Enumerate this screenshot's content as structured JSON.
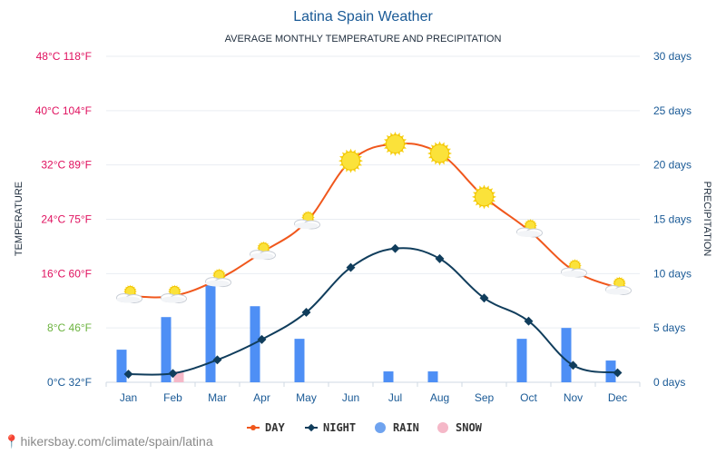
{
  "chart_data": {
    "type": "line",
    "title": "Latina Spain Weather",
    "subtitle": "AVERAGE MONTHLY TEMPERATURE AND PRECIPITATION",
    "categories": [
      "Jan",
      "Feb",
      "Mar",
      "Apr",
      "May",
      "Jun",
      "Jul",
      "Aug",
      "Sep",
      "Oct",
      "Nov",
      "Dec"
    ],
    "left_axis": {
      "label": "TEMPERATURE",
      "range": [
        0,
        48
      ],
      "ticks": [
        "0°C 32°F",
        "8°C 46°F",
        "16°C 60°F",
        "24°C 75°F",
        "32°C 89°F",
        "40°C 104°F",
        "48°C 118°F"
      ],
      "tick_colors": [
        "#1a5a96",
        "#6cb33f",
        "#e0115f",
        "#e0115f",
        "#e0115f",
        "#e0115f",
        "#e0115f"
      ]
    },
    "right_axis": {
      "label": "PRECIPITATION",
      "range": [
        0,
        30
      ],
      "ticks": [
        "0 days",
        "5 days",
        "10 days",
        "15 days",
        "20 days",
        "25 days",
        "30 days"
      ]
    },
    "series": [
      {
        "name": "DAY",
        "type": "line",
        "unit": "°C",
        "color": "#f0571c",
        "values": [
          12.7,
          12.7,
          15.1,
          19.1,
          23.6,
          32.6,
          35.1,
          33.7,
          27.3,
          22.4,
          16.5,
          13.9
        ]
      },
      {
        "name": "NIGHT",
        "type": "line",
        "unit": "°C",
        "color": "#103d5c",
        "values": [
          1.2,
          1.3,
          3.3,
          6.3,
          10.3,
          16.9,
          19.7,
          18.2,
          12.4,
          9.0,
          2.5,
          1.4
        ]
      },
      {
        "name": "RAIN",
        "type": "bar",
        "unit": "days",
        "color": "#4e8ff5",
        "values": [
          3,
          6,
          9,
          7,
          4,
          0,
          1,
          1,
          0,
          4,
          5,
          2
        ]
      },
      {
        "name": "SNOW",
        "type": "bar",
        "unit": "days",
        "color": "#f5b8c8",
        "values": [
          0,
          1,
          0,
          0,
          0,
          0,
          0,
          0,
          0,
          0,
          0,
          0
        ]
      }
    ],
    "weather_icons": [
      "partly-cloudy",
      "partly-cloudy",
      "partly-cloudy",
      "partly-cloudy",
      "partly-cloudy",
      "sun",
      "sun",
      "sun",
      "sun",
      "partly-cloudy",
      "partly-cloudy",
      "partly-cloudy"
    ],
    "legend": [
      "DAY",
      "NIGHT",
      "RAIN",
      "SNOW"
    ],
    "legend_position": "bottom-center",
    "grid": true
  },
  "footer": {
    "pin_icon": "map-pin-icon",
    "text": "hikersbay.com/climate/spain/latina"
  }
}
